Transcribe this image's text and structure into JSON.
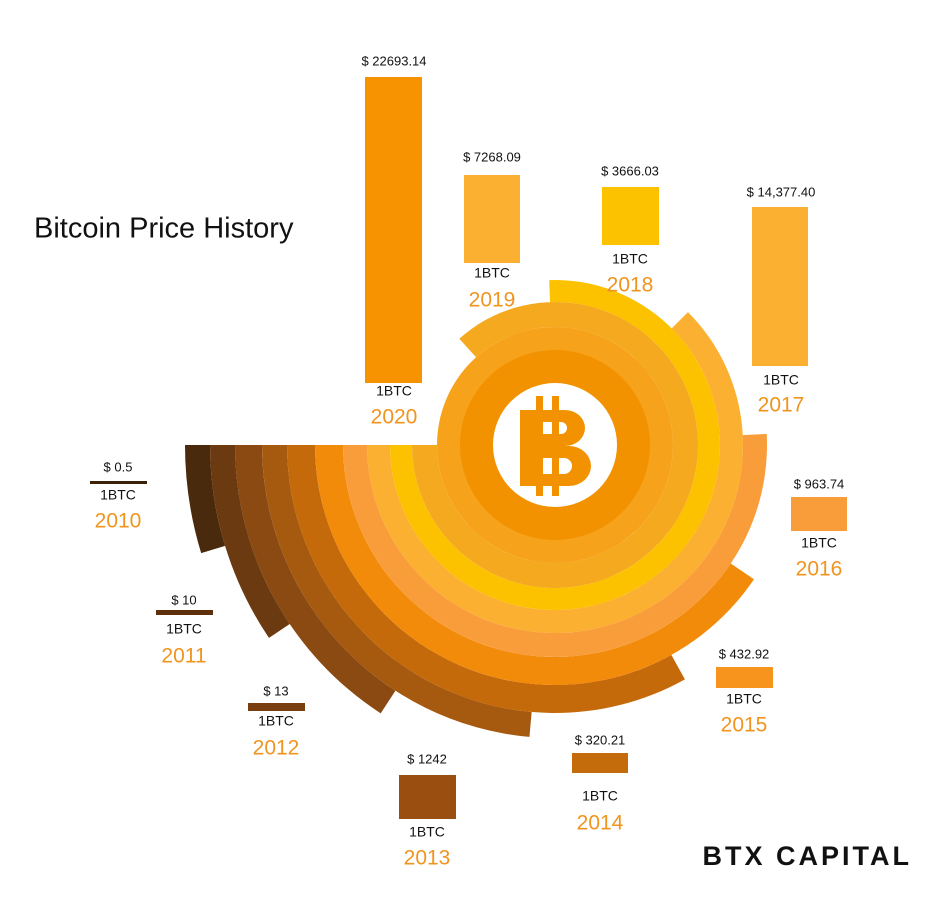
{
  "title": "Bitcoin Price History",
  "items": [
    {
      "price": "$ 22693.14",
      "unit": "1BTC",
      "year": "2020"
    },
    {
      "price": "$ 7268.09",
      "unit": "1BTC",
      "year": "2019"
    },
    {
      "price": "$ 3666.03",
      "unit": "1BTC",
      "year": "2018"
    },
    {
      "price": "$ 14,377.40",
      "unit": "1BTC",
      "year": "2017"
    },
    {
      "price": "$ 963.74",
      "unit": "1BTC",
      "year": "2016"
    },
    {
      "price": "$ 432.92",
      "unit": "1BTC",
      "year": "2015"
    },
    {
      "price": "$ 320.21",
      "unit": "1BTC",
      "year": "2014"
    },
    {
      "price": "$ 1242",
      "unit": "1BTC",
      "year": "2013"
    },
    {
      "price": "$ 13",
      "unit": "1BTC",
      "year": "2012"
    },
    {
      "price": "$ 10",
      "unit": "1BTC",
      "year": "2011"
    },
    {
      "price": "$ 0.5",
      "unit": "1BTC",
      "year": "2010"
    }
  ],
  "logo": "BTX CAPITAL"
}
